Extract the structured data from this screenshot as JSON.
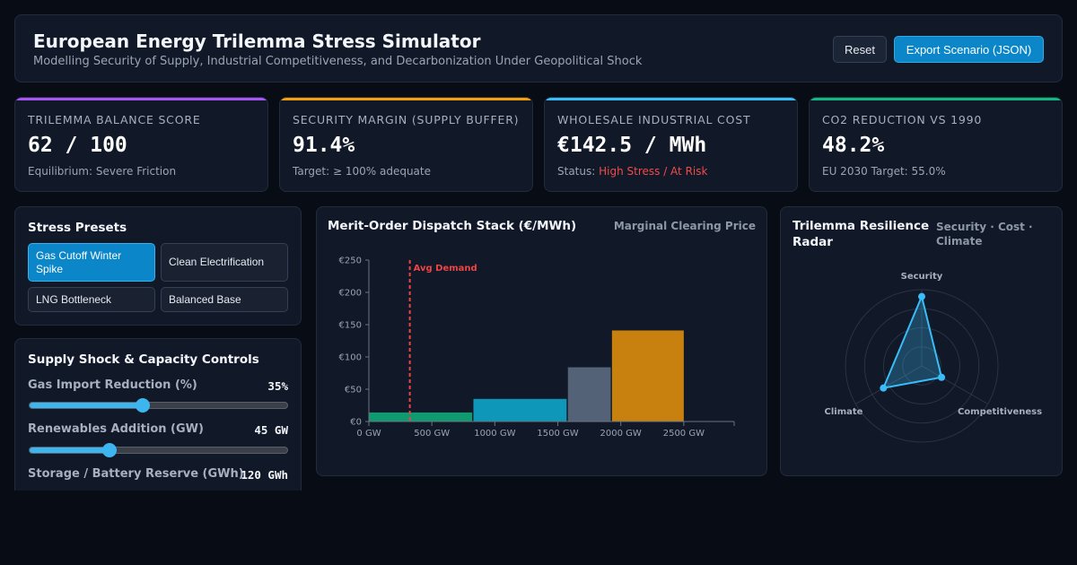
{
  "header": {
    "title": "European Energy Trilemma Stress Simulator",
    "subtitle": "Modelling Security of Supply, Industrial Competitiveness, and Decarbonization Under Geopolitical Shock",
    "reset_label": "Reset",
    "export_label": "Export Scenario (JSON)"
  },
  "kpis": [
    {
      "label": "TRILEMMA BALANCE SCORE",
      "value": "62 / 100",
      "note_prefix": "Equilibrium: Severe Friction",
      "note_status": "",
      "accent": "#a855f7"
    },
    {
      "label": "SECURITY MARGIN (SUPPLY BUFFER)",
      "value": "91.4%",
      "note_prefix": "Target: ≥ 100% adequate",
      "note_status": "",
      "accent": "#f59e0b"
    },
    {
      "label": "WHOLESALE INDUSTRIAL COST",
      "value": "€142.5 / MWh",
      "note_prefix": "Status: ",
      "note_status": "High Stress / At Risk",
      "accent": "#38bdf8"
    },
    {
      "label": "CO2 REDUCTION VS 1990",
      "value": "48.2%",
      "note_prefix": "EU 2030 Target: 55.0%",
      "note_status": "",
      "accent": "#10b981"
    }
  ],
  "presets": {
    "title": "Stress Presets",
    "items": [
      {
        "label": "Gas Cutoff Winter Spike",
        "active": true
      },
      {
        "label": "Clean Electrification",
        "active": false
      },
      {
        "label": "LNG Bottleneck",
        "active": false
      },
      {
        "label": "Balanced Base",
        "active": false
      }
    ]
  },
  "controls": {
    "title": "Supply Shock & Capacity Controls",
    "sliders": [
      {
        "label": "Gas Import Reduction (%)",
        "value": "35%",
        "fraction": 0.44
      },
      {
        "label": "Renewables Addition (GW)",
        "value": "45 GW",
        "fraction": 0.31
      },
      {
        "label": "Storage / Battery Reserve (GWh)",
        "value": "120 GWh",
        "fraction": 0.5
      }
    ]
  },
  "chart_data": {
    "type": "bar",
    "title": "Merit-Order Dispatch Stack (€/MWh)",
    "subtitle": "Marginal Clearing Price",
    "annotation": "Avg Demand",
    "demand_gw": 325,
    "xlim": [
      0,
      2900
    ],
    "ylim": [
      0,
      250
    ],
    "x_ticks": [
      0,
      500,
      1000,
      1500,
      2000,
      2500
    ],
    "x_tick_labels": [
      "0 GW",
      "500 GW",
      "1000 GW",
      "1500 GW",
      "2000 GW",
      "2500 GW"
    ],
    "y_ticks": [
      0,
      50,
      100,
      150,
      200,
      250
    ],
    "y_tick_labels": [
      "€0",
      "€50",
      "€100",
      "€150",
      "€200",
      "€250"
    ],
    "blocks": [
      {
        "start": 0,
        "end": 820,
        "price": 14,
        "color": "#109a70"
      },
      {
        "start": 830,
        "end": 1570,
        "price": 35,
        "color": "#0e97b8"
      },
      {
        "start": 1580,
        "end": 1920,
        "price": 84,
        "color": "#536277"
      },
      {
        "start": 1930,
        "end": 2500,
        "price": 141,
        "color": "#c8810f"
      }
    ]
  },
  "radar": {
    "title": "Trilemma Resilience Radar",
    "subtitle": "Security · Cost · Climate",
    "axes": [
      "Security",
      "Competitiveness",
      "Climate"
    ],
    "values": [
      0.91,
      0.3,
      0.58
    ],
    "color": "#38bdf8"
  }
}
